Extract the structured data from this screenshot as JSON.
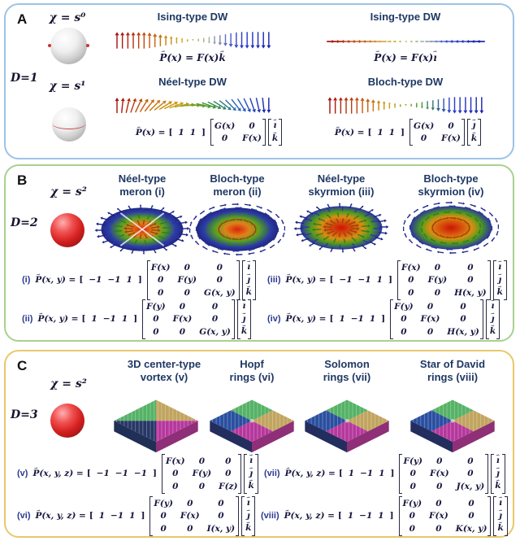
{
  "panelA": {
    "label": "A",
    "dim": "D=1",
    "chi_top": "χ = s⁰",
    "chi_bottom": "χ = s¹",
    "col_left": {
      "title1": "Ising-type DW",
      "eq1": {
        "p": "P",
        "mid": "(x) = F(x) ",
        "basis": "k"
      },
      "title2": "Néel-type DW",
      "eq2": {
        "p": "P",
        "args": "(x) =",
        "pre": [
          "1",
          "1"
        ],
        "m": [
          "G(x)",
          "0",
          "0",
          "F(x)"
        ],
        "basis": [
          "ı",
          "k"
        ]
      }
    },
    "col_right": {
      "title1": "Ising-type DW",
      "eq1": {
        "p": "P",
        "mid": "(x) = F(x) ",
        "basis": "ı"
      },
      "title2": "Bloch-type DW",
      "eq2": {
        "p": "P",
        "args": "(x) =",
        "pre": [
          "1",
          "1"
        ],
        "m": [
          "G(x)",
          "0",
          "0",
          "F(x)"
        ],
        "basis": [
          "ȷ",
          "k"
        ]
      }
    }
  },
  "panelB": {
    "label": "B",
    "dim": "D=2",
    "chi": "χ = s²",
    "headers": [
      "Néel-type\nmeron (i)",
      "Bloch-type\nmeron (ii)",
      "Néel-type\nskyrmion (iii)",
      "Bloch-type\nskyrmion (iv)"
    ],
    "eqs": [
      {
        "tag": "(i)",
        "p": "P",
        "args": "(x, y) =",
        "pre": [
          "−1",
          "−1",
          "1"
        ],
        "m": [
          "F(x)",
          "0",
          "0",
          "0",
          "F(y)",
          "0",
          "0",
          "0",
          "G(x, y)"
        ],
        "basis": [
          "ı",
          "ȷ",
          "k"
        ]
      },
      {
        "tag": "(ii)",
        "p": "P",
        "args": "(x, y) =",
        "pre": [
          "1",
          "−1",
          "1"
        ],
        "m": [
          "F(y)",
          "0",
          "0",
          "0",
          "F(x)",
          "0",
          "0",
          "0",
          "G(x, y)"
        ],
        "basis": [
          "ı",
          "ȷ",
          "k"
        ]
      },
      {
        "tag": "(iii)",
        "p": "P",
        "args": "(x, y) =",
        "pre": [
          "−1",
          "−1",
          "1"
        ],
        "m": [
          "F(x)",
          "0",
          "0",
          "0",
          "F(y)",
          "0",
          "0",
          "0",
          "H(x, y)"
        ],
        "basis": [
          "ı",
          "ȷ",
          "k"
        ]
      },
      {
        "tag": "(iv)",
        "p": "P",
        "args": "(x, y) =",
        "pre": [
          "1",
          "−1",
          "1"
        ],
        "m": [
          "F(y)",
          "0",
          "0",
          "0",
          "F(x)",
          "0",
          "0",
          "0",
          "H(x, y)"
        ],
        "basis": [
          "ı",
          "ȷ",
          "k"
        ]
      }
    ]
  },
  "panelC": {
    "label": "C",
    "dim": "D=3",
    "chi": "χ = s²",
    "headers": [
      "3D center-type\nvortex (v)",
      "Hopf\nrings (vi)",
      "Solomon\nrings (vii)",
      "Star of David\nrings (viii)"
    ],
    "eqs": [
      {
        "tag": "(v)",
        "p": "P",
        "args": "(x, y, z) =",
        "pre": [
          "−1",
          "−1",
          "−1"
        ],
        "m": [
          "F(x)",
          "0",
          "0",
          "0",
          "F(y)",
          "0",
          "0",
          "0",
          "F(z)"
        ],
        "basis": [
          "ı",
          "ȷ",
          "k"
        ]
      },
      {
        "tag": "(vi)",
        "p": "P",
        "args": "(x, y, z) =",
        "pre": [
          "1",
          "−1",
          "1"
        ],
        "m": [
          "F(y)",
          "0",
          "0",
          "0",
          "F(x)",
          "0",
          "0",
          "0",
          "I(x, y)"
        ],
        "basis": [
          "ı",
          "ȷ",
          "k"
        ]
      },
      {
        "tag": "(vii)",
        "p": "P",
        "args": "(x, y, z) =",
        "pre": [
          "1",
          "−1",
          "1"
        ],
        "m": [
          "F(y)",
          "0",
          "0",
          "0",
          "F(x)",
          "0",
          "0",
          "0",
          "J(x, y)"
        ],
        "basis": [
          "ı",
          "ȷ",
          "k"
        ]
      },
      {
        "tag": "(viii)",
        "p": "P",
        "args": "(x, y, z) =",
        "pre": [
          "1",
          "−1",
          "1"
        ],
        "m": [
          "F(y)",
          "0",
          "0",
          "0",
          "F(x)",
          "0",
          "0",
          "0",
          "K(x, y)"
        ],
        "basis": [
          "ı",
          "ȷ",
          "k"
        ]
      }
    ]
  },
  "colors": {
    "panelA_border": "#9dc3e6",
    "panelB_border": "#a9d18e",
    "panelC_border": "#e8c86a",
    "heading": "#1f3864",
    "equation": "#17173f",
    "tag": "#2b3990",
    "dw_red": "#a50f0f",
    "dw_yellow": "#c9a312",
    "dw_green": "#3f9b2f",
    "dw_blue": "#1a22aa",
    "slab_green": "#55b266",
    "slab_gold": "#c1a45f",
    "slab_navy": "#273766",
    "slab_magenta": "#b5379c",
    "slab_blue": "#2a4fa0",
    "sphere_red": "#d31f1f",
    "sphere_marker_red": "#cc3333"
  }
}
